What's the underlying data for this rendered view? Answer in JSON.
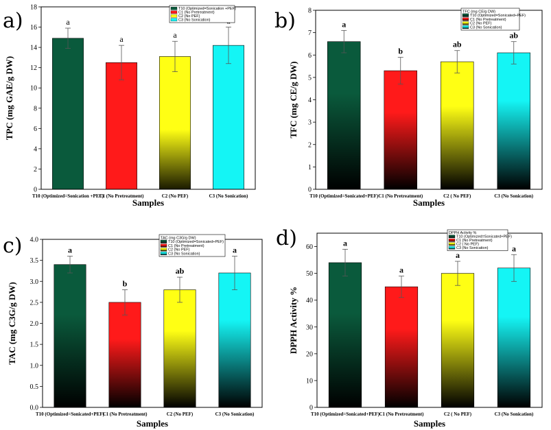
{
  "figure": {
    "colors": {
      "T10": "#0a5a3c",
      "C1": "#ff1a1a",
      "C2": "#ffff14",
      "C3": "#14f5f5",
      "dark": "#000000"
    }
  },
  "chart_data": [
    {
      "type": "bar",
      "panel": "a)",
      "title": "",
      "xlabel": "Samples",
      "ylabel": "TPC (mg GAE/g DW)",
      "ylim": [
        0,
        18
      ],
      "yticks": [
        0,
        2,
        4,
        6,
        8,
        10,
        12,
        14,
        16,
        18
      ],
      "categories": [
        "T10 (Optimized=Sonication +PEF)",
        "C1 (No Pretreatment)",
        "C2 (No PEF)",
        "C3 (No Sonication)"
      ],
      "values": [
        14.9,
        12.5,
        13.1,
        14.2
      ],
      "errors": [
        1.0,
        1.7,
        1.5,
        1.8
      ],
      "significance": [
        "a",
        "a",
        "a",
        "a"
      ],
      "sig_bold": false,
      "gradient": false,
      "legend": {
        "title": "",
        "entries": [
          "T10 (Optimized=Sonication +PEF)",
          "C1 (No Pretreatment)",
          "C2 (No PEF)",
          "C3 (No Sonication)"
        ]
      }
    },
    {
      "type": "bar",
      "panel": "b)",
      "title": "",
      "xlabel": "Samples",
      "ylabel": "TFC (mg CE/g DW)",
      "ylim": [
        0,
        8
      ],
      "yticks": [
        0,
        1,
        2,
        3,
        4,
        5,
        6,
        7,
        8
      ],
      "categories": [
        "T10 (Optimized=Sonicated+PEF)",
        "C1 (No Pretreatment)",
        "C2 ( No PEF)",
        "C3 (No Sonication)"
      ],
      "values": [
        6.6,
        5.3,
        5.7,
        6.1
      ],
      "errors": [
        0.5,
        0.6,
        0.5,
        0.5
      ],
      "significance": [
        "a",
        "b",
        "ab",
        "ab"
      ],
      "sig_bold": true,
      "gradient": true,
      "legend": {
        "title": "TFC (mg CE/g DW)",
        "entries": [
          "T10 (Optimized=Sonicated+PEF)",
          "C1 (No Pretreatment)",
          "C2 (No PEF)",
          "C3 (No Sonication)"
        ]
      }
    },
    {
      "type": "bar",
      "panel": "c)",
      "title": "",
      "xlabel": "Samples",
      "ylabel": "TAC (mg C3G/g DW)",
      "ylim": [
        0,
        4
      ],
      "yticks": [
        0.0,
        0.5,
        1.0,
        1.5,
        2.0,
        2.5,
        3.0,
        3.5,
        4.0
      ],
      "categories": [
        "T10 (Optimized=Sonicated+PEF)",
        "C1 (No Pretreatment)",
        "C2 (No PEF)",
        "C3 (No Sonication)"
      ],
      "values": [
        3.4,
        2.5,
        2.8,
        3.2
      ],
      "errors": [
        0.2,
        0.3,
        0.3,
        0.4
      ],
      "significance": [
        "a",
        "b",
        "ab",
        "a"
      ],
      "sig_bold": true,
      "gradient": true,
      "legend": {
        "title": "TAC (mg C3G/g DW)",
        "entries": [
          "T10 (Optimized=Sonicated+PEF)",
          "C1 (No Pretreatment)",
          "C2 (No PEF)",
          "C3 (No Sonication)"
        ]
      }
    },
    {
      "type": "bar",
      "panel": "d)",
      "title": "",
      "xlabel": "Samples",
      "ylabel": "DPPH Activity %",
      "ylim": [
        0,
        65
      ],
      "yticks": [
        0,
        10,
        20,
        30,
        40,
        50,
        60
      ],
      "categories": [
        "T10 (Optimized=Sonicated+PEF)",
        "C1 (No Pretreatment)",
        "C2 ( No PEF)",
        "C3 (No Sonication)"
      ],
      "values": [
        54,
        45,
        50,
        52
      ],
      "errors": [
        5,
        4,
        4.5,
        5
      ],
      "significance": [
        "a",
        "a",
        "a",
        "a"
      ],
      "sig_bold": true,
      "gradient": true,
      "legend": {
        "title": "DPPH Activity %",
        "entries": [
          "T10 (Optimized=Sonicated+PEF)",
          "C1 (No Pretreatment)",
          "C2 ( No PEF)",
          "C3 (No Sonication)"
        ]
      }
    }
  ]
}
